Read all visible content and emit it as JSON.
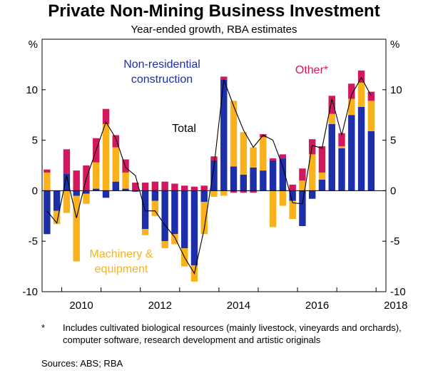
{
  "title": "Private Non-Mining Business Investment",
  "subtitle": "Year-ended growth, RBA estimates",
  "footnote": {
    "marker": "*",
    "text": "Includes cultivated biological resources (mainly livestock, vineyards and orchards), computer software, research development and artistic originals"
  },
  "sources": "Sources:   ABS; RBA",
  "colors": {
    "nonres": "#1c2fa8",
    "machinery": "#f9b21c",
    "other": "#d2175f",
    "total": "#000000"
  },
  "chart_data": {
    "type": "bar",
    "stacked": true,
    "y_unit_left": "%",
    "y_unit_right": "%",
    "ylim": [
      -10,
      15
    ],
    "yticks": [
      -10,
      -5,
      0,
      5,
      10
    ],
    "x_ticks": [
      "2010",
      "2012",
      "2014",
      "2016",
      "2018"
    ],
    "x_tick_quarter_index": [
      2,
      10,
      18,
      26,
      34
    ],
    "quarters": [
      "2009 Q3",
      "2009 Q4",
      "2010 Q1",
      "2010 Q2",
      "2010 Q3",
      "2010 Q4",
      "2011 Q1",
      "2011 Q2",
      "2011 Q3",
      "2011 Q4",
      "2012 Q1",
      "2012 Q2",
      "2012 Q3",
      "2012 Q4",
      "2013 Q1",
      "2013 Q2",
      "2013 Q3",
      "2013 Q4",
      "2014 Q1",
      "2014 Q2",
      "2014 Q3",
      "2014 Q4",
      "2015 Q1",
      "2015 Q2",
      "2015 Q3",
      "2015 Q4",
      "2016 Q1",
      "2016 Q2",
      "2016 Q3",
      "2016 Q4",
      "2017 Q1",
      "2017 Q2",
      "2017 Q3",
      "2017 Q4",
      "2018 Q1"
    ],
    "series": [
      {
        "name": "Non-residential construction",
        "color_key": "nonres",
        "values": [
          -4.3,
          -2.0,
          1.7,
          -0.5,
          -0.3,
          0.2,
          -0.7,
          0.9,
          0.2,
          -0.1,
          -3.8,
          -1.0,
          -5.0,
          -4.3,
          -5.7,
          -7.4,
          -1.1,
          3.0,
          11.0,
          2.4,
          1.6,
          2.3,
          2.0,
          3.0,
          3.2,
          -1.0,
          -3.5,
          -0.8,
          1.1,
          6.6,
          4.2,
          7.5,
          8.3,
          5.9,
          0.0
        ]
      },
      {
        "name": "Machinery & equipment",
        "color_key": "machinery",
        "values": [
          1.8,
          -1.3,
          -2.2,
          -6.5,
          -1.0,
          2.6,
          6.6,
          3.4,
          1.6,
          0.0,
          -0.6,
          -1.5,
          -0.7,
          -1.0,
          -1.8,
          -1.6,
          -3.2,
          -0.6,
          -0.5,
          6.5,
          4.2,
          2.0,
          3.3,
          -3.6,
          -1.5,
          -1.8,
          1.0,
          3.6,
          0.7,
          1.0,
          0.2,
          1.6,
          2.4,
          3.0,
          0.0
        ]
      },
      {
        "name": "Other*",
        "color_key": "other",
        "values": [
          0.3,
          0.0,
          2.4,
          2.0,
          2.5,
          2.4,
          1.5,
          1.2,
          1.3,
          0.8,
          0.8,
          0.9,
          0.9,
          0.7,
          0.5,
          0.4,
          0.5,
          0.4,
          0.3,
          -0.2,
          -0.2,
          -0.2,
          0.3,
          0.2,
          0.4,
          0.6,
          1.2,
          1.5,
          2.6,
          1.8,
          1.3,
          1.5,
          1.2,
          0.9,
          0.0
        ]
      }
    ],
    "total": [
      -2.0,
      -3.2,
      1.5,
      -2.7,
      1.2,
      4.0,
      6.8,
      5.2,
      2.3,
      1.5,
      -2.0,
      -2.0,
      -3.4,
      -4.6,
      -6.6,
      -8.2,
      -3.8,
      2.4,
      11.0,
      8.4,
      6.0,
      4.3,
      5.5,
      5.0,
      2.4,
      -1.2,
      -1.3,
      4.5,
      4.2,
      9.1,
      5.5,
      9.5,
      11.2,
      9.4,
      0.0
    ],
    "total_label": "Total",
    "annotations": [
      {
        "text_lines": [
          "Non-residential",
          "construction"
        ],
        "color_key": "nonres"
      },
      {
        "text_lines": [
          "Other*"
        ],
        "color_key": "other"
      },
      {
        "text_lines": [
          "Total"
        ],
        "color_key": "total"
      },
      {
        "text_lines": [
          "Machinery &",
          "equipment"
        ],
        "color_key": "machinery"
      }
    ]
  }
}
